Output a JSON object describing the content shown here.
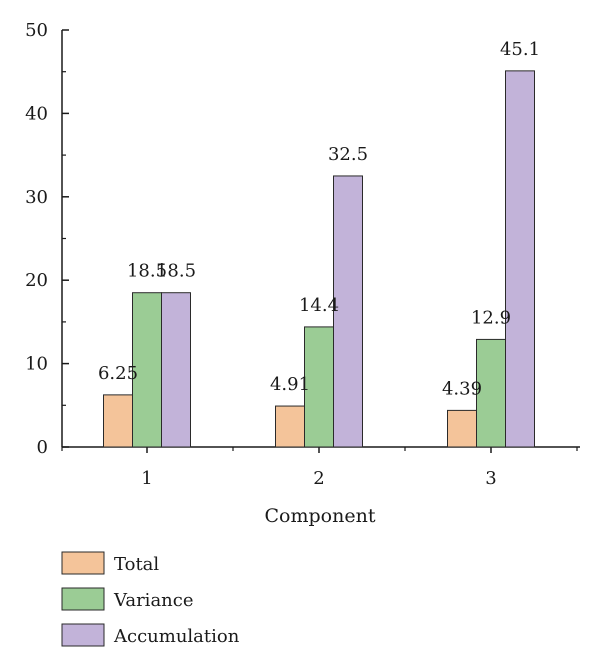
{
  "chart_data": {
    "type": "bar",
    "categories": [
      "1",
      "2",
      "3"
    ],
    "xlabel": "Component",
    "ylabel": "",
    "ylim": [
      0,
      50
    ],
    "yticks": [
      0,
      10,
      20,
      30,
      40,
      50
    ],
    "grid": false,
    "legend_position": "bottom-left",
    "series": [
      {
        "name": "Total",
        "color": "#f4c49a",
        "values": [
          6.25,
          4.91,
          4.39
        ],
        "labels": [
          "6.25",
          "4.91",
          "4.39"
        ]
      },
      {
        "name": "Variance",
        "color": "#9bcc95",
        "values": [
          18.5,
          14.4,
          12.9
        ],
        "labels": [
          "18.5",
          "14.4",
          "12.9"
        ]
      },
      {
        "name": "Accumulation",
        "color": "#c2b3d9",
        "values": [
          18.5,
          32.5,
          45.1
        ],
        "labels": [
          "18.5",
          "32.5",
          "45.1"
        ]
      }
    ]
  }
}
